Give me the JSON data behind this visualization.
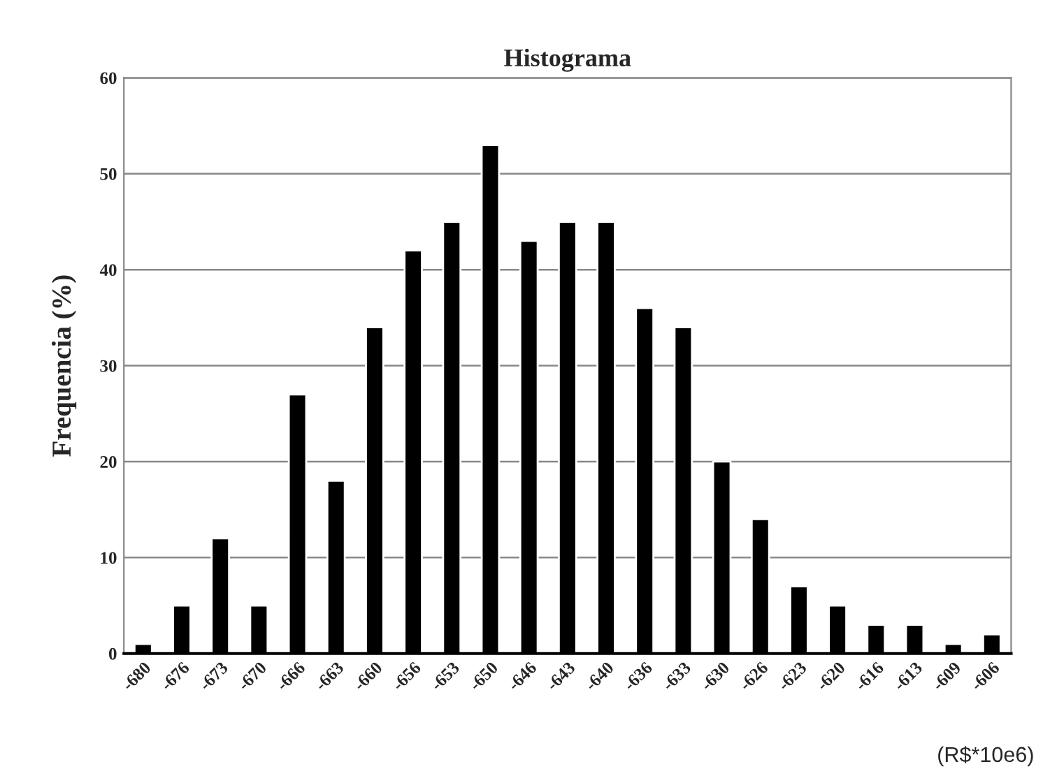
{
  "chart_data": {
    "type": "bar",
    "title": "Histograma",
    "ylabel": "Frequencia (%)",
    "categories": [
      "-680",
      "-676",
      "-673",
      "-670",
      "-666",
      "-663",
      "-660",
      "-656",
      "-653",
      "-650",
      "-646",
      "-643",
      "-640",
      "-636",
      "-633",
      "-630",
      "-626",
      "-623",
      "-620",
      "-616",
      "-613",
      "-609",
      "-606"
    ],
    "values": [
      1,
      5,
      12,
      5,
      27,
      18,
      34,
      42,
      45,
      53,
      43,
      45,
      45,
      36,
      34,
      20,
      14,
      7,
      5,
      3,
      3,
      1,
      2
    ],
    "color": "#000000",
    "ylim": [
      0,
      60
    ],
    "yticks": [
      0,
      10,
      20,
      30,
      40,
      50,
      60
    ],
    "grid": "y",
    "annotations": [
      "(R$*10e6)"
    ]
  }
}
